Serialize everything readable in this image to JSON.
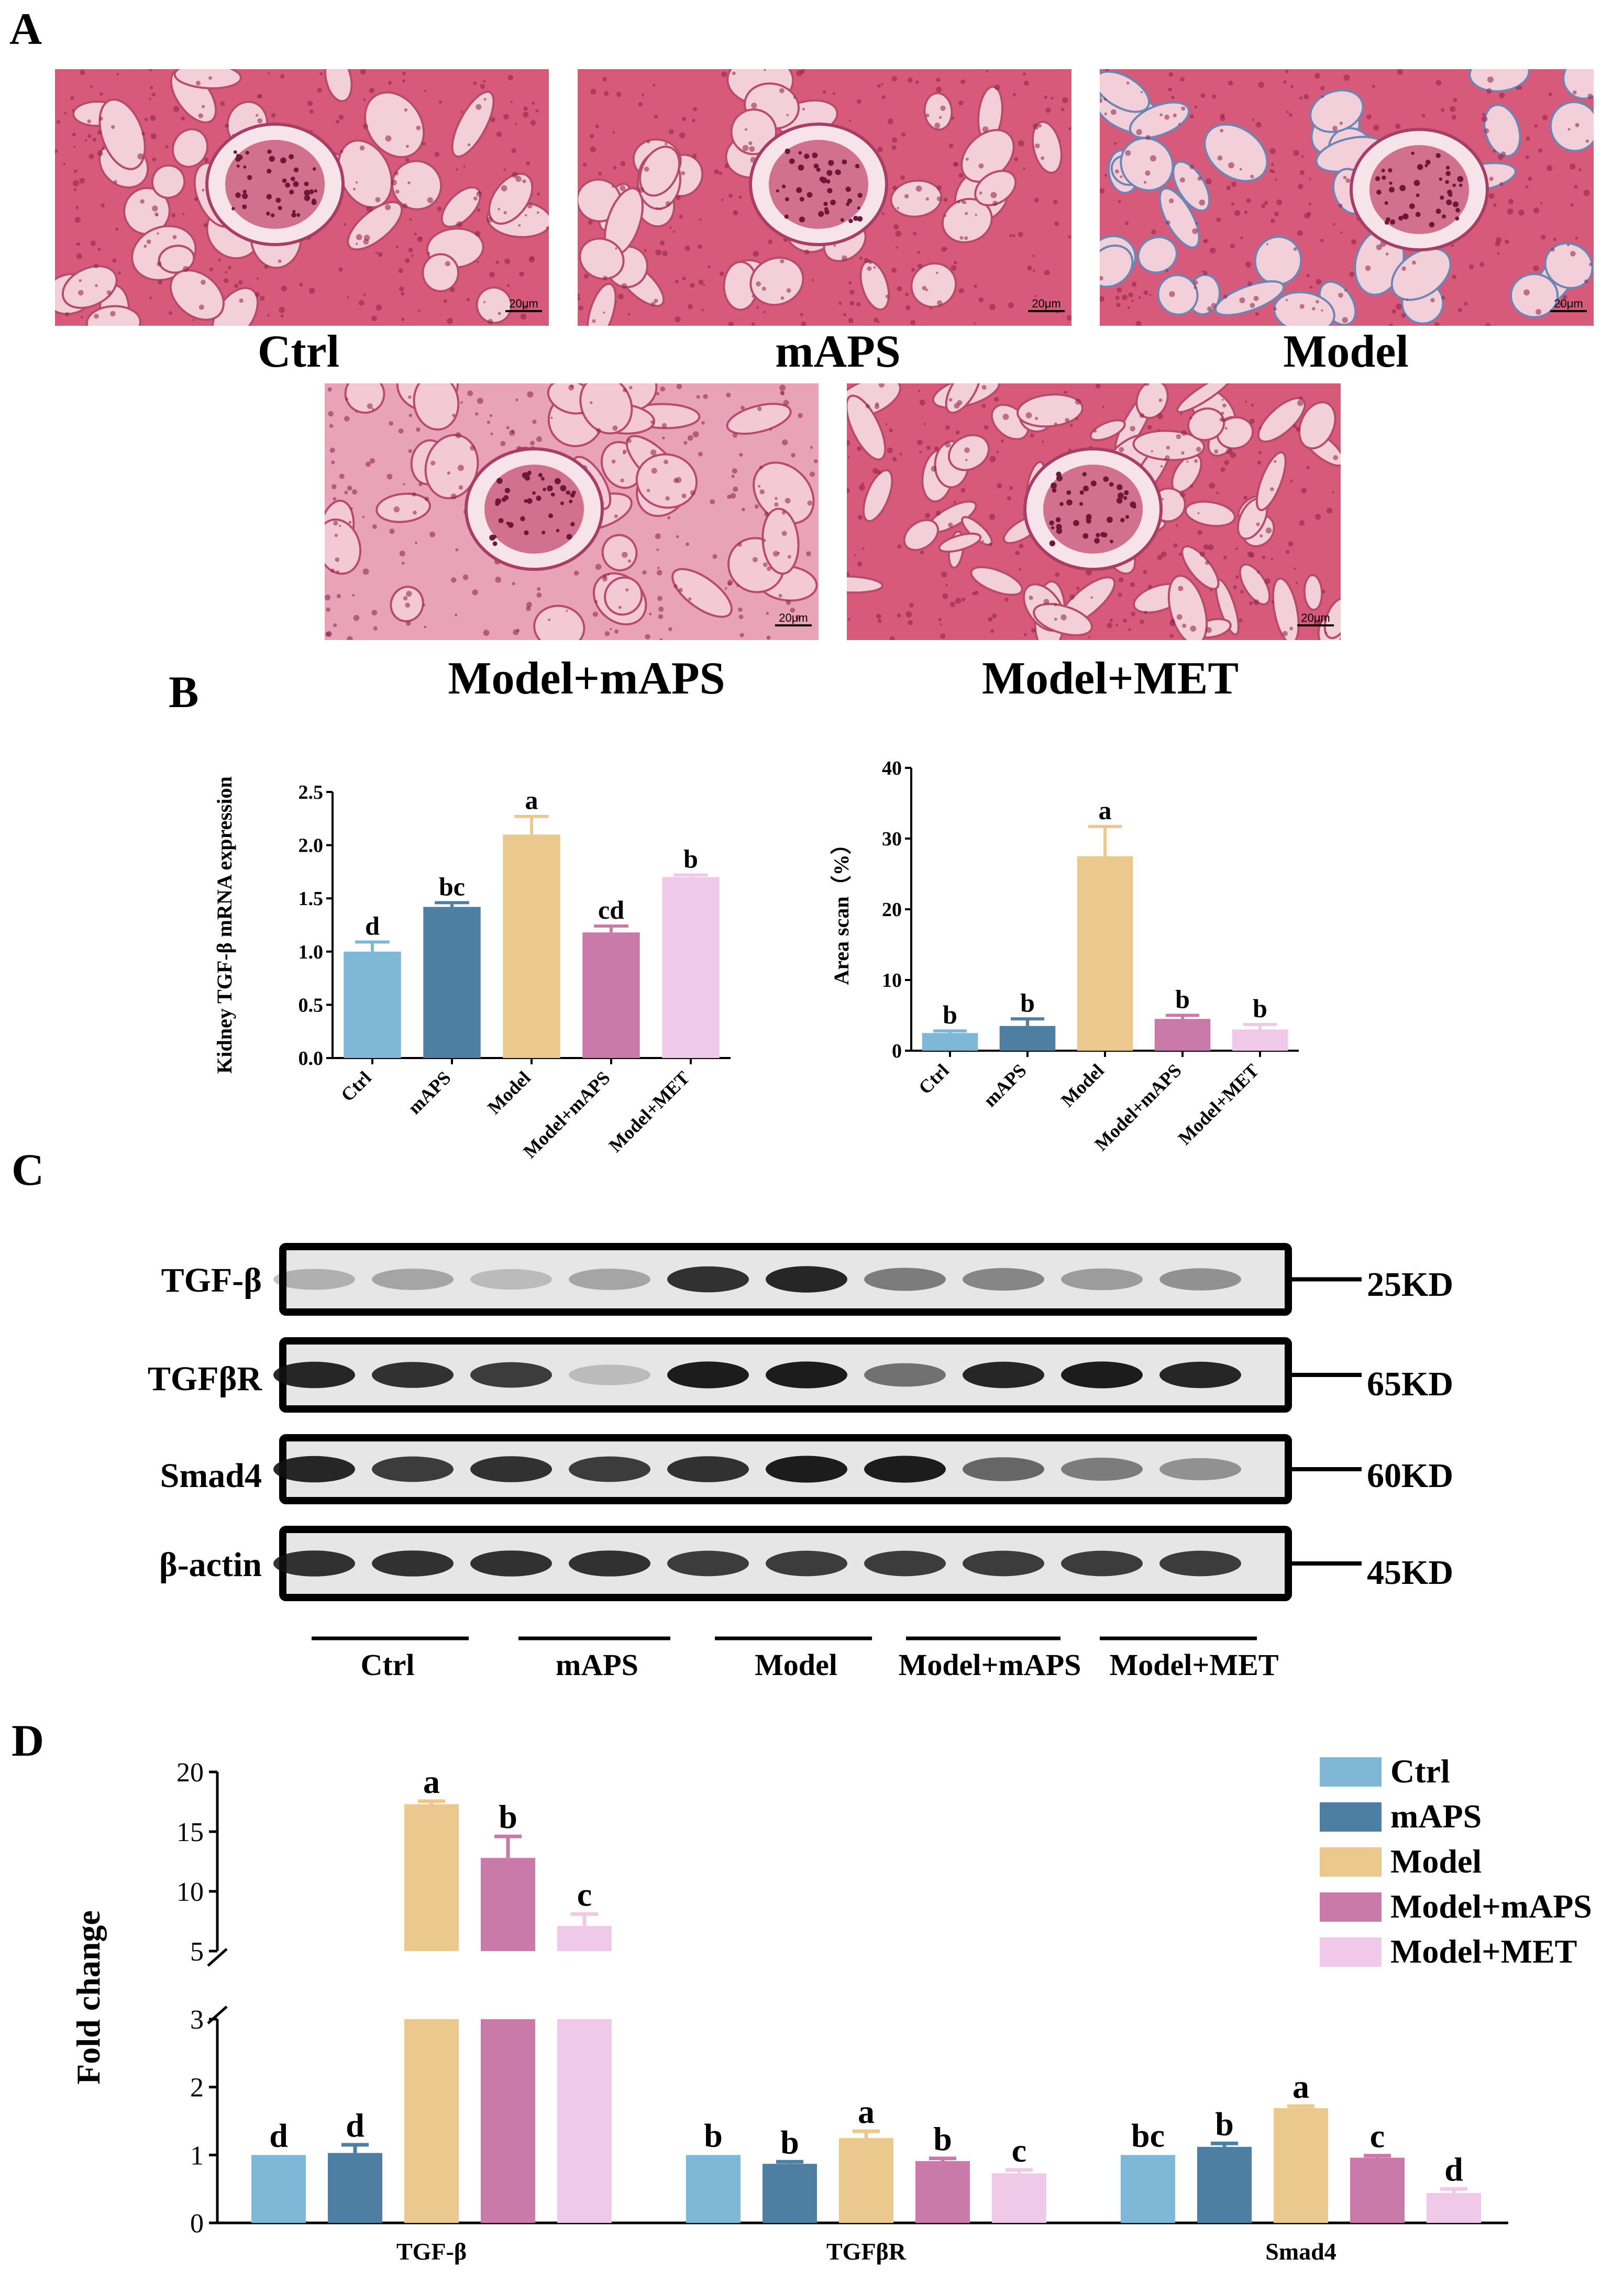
{
  "panels": {
    "a": "A",
    "b": "B",
    "c": "C",
    "d": "D"
  },
  "colors": {
    "ctrl": "#7fb8d6",
    "maps": "#4f7ea3",
    "model": "#ebc98e",
    "model_maps": "#c97aa8",
    "model_met": "#f0c8e8"
  },
  "histology": [
    {
      "caption": "Ctrl",
      "scale": "20μm"
    },
    {
      "caption": "mAPS",
      "scale": "20μm"
    },
    {
      "caption": "Model",
      "scale": "20μm"
    },
    {
      "caption": "Model+mAPS",
      "scale": "20μm"
    },
    {
      "caption": "Model+MET",
      "scale": "20μm"
    }
  ],
  "western": {
    "bands": [
      {
        "label": "TGF-β",
        "kd": "25KD"
      },
      {
        "label": "TGFβR",
        "kd": "65KD"
      },
      {
        "label": "Smad4",
        "kd": "60KD"
      },
      {
        "label": "β-actin",
        "kd": "45KD"
      }
    ],
    "groups": [
      "Ctrl",
      "mAPS",
      "Model",
      "Model+mAPS",
      "Model+MET"
    ]
  },
  "chart_data": [
    {
      "type": "bar",
      "title": "",
      "ylabel": "Kidney TGF-β  mRNA expression",
      "categories": [
        "Ctrl",
        "mAPS",
        "Model",
        "Model+mAPS",
        "Model+MET"
      ],
      "values": [
        1.0,
        1.42,
        2.1,
        1.18,
        1.7
      ],
      "errors": [
        0.09,
        0.04,
        0.17,
        0.06,
        0.02
      ],
      "letters": [
        "d",
        "bc",
        "a",
        "cd",
        "b"
      ],
      "ylim": [
        0,
        2.5
      ],
      "yticks": [
        "0.0",
        "0.5",
        "1.0",
        "1.5",
        "2.0",
        "2.5"
      ]
    },
    {
      "type": "bar",
      "title": "",
      "ylabel": "Area scan（%）",
      "categories": [
        "Ctrl",
        "mAPS",
        "Model",
        "Model+mAPS",
        "Model+MET"
      ],
      "values": [
        2.5,
        3.5,
        27.5,
        4.5,
        3.0
      ],
      "errors": [
        0.3,
        1.0,
        4.2,
        0.5,
        0.7
      ],
      "letters": [
        "b",
        "b",
        "a",
        "b",
        "b"
      ],
      "ylim": [
        0,
        40
      ],
      "yticks": [
        "0",
        "10",
        "20",
        "30",
        "40"
      ]
    },
    {
      "type": "bar",
      "title": "",
      "ylabel": "Fold change",
      "xlabel": "",
      "categories": [
        "TGF-β",
        "TGFβR",
        "Smad4"
      ],
      "series": [
        {
          "name": "Ctrl",
          "values": [
            1.0,
            1.0,
            1.0
          ],
          "errors": [
            0,
            0,
            0
          ],
          "letters": [
            "d",
            "b",
            "bc"
          ]
        },
        {
          "name": "mAPS",
          "values": [
            1.03,
            0.87,
            1.12
          ],
          "errors": [
            0.12,
            0.03,
            0.05
          ],
          "letters": [
            "d",
            "b",
            "b"
          ]
        },
        {
          "name": "Model",
          "values": [
            17.3,
            1.25,
            1.69
          ],
          "errors": [
            0.25,
            0.1,
            0.03
          ],
          "letters": [
            "a",
            "a",
            "a"
          ]
        },
        {
          "name": "Model+mAPS",
          "values": [
            12.8,
            0.91,
            0.96
          ],
          "errors": [
            1.8,
            0.04,
            0.03
          ],
          "letters": [
            "b",
            "b",
            "c"
          ]
        },
        {
          "name": "Model+MET",
          "values": [
            7.1,
            0.73,
            0.44
          ],
          "errors": [
            1.0,
            0.05,
            0.06
          ],
          "letters": [
            "c",
            "c",
            "d"
          ]
        }
      ],
      "broken_axis": {
        "lower": [
          0,
          3
        ],
        "upper": [
          5,
          20
        ]
      },
      "yticks_lower": [
        "0",
        "1",
        "2",
        "3"
      ],
      "yticks_upper": [
        "5",
        "10",
        "15",
        "20"
      ],
      "legend_position": "top-right"
    }
  ]
}
